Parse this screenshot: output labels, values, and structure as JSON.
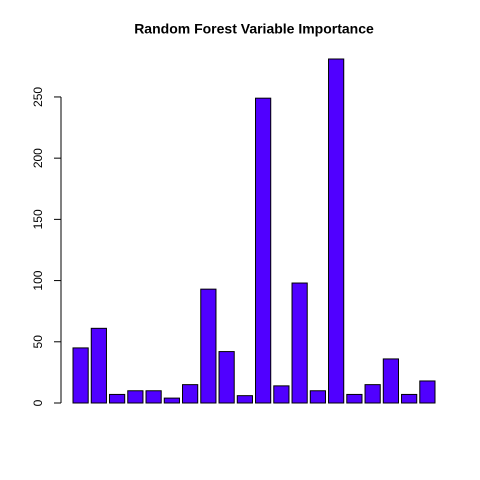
{
  "chart_data": {
    "type": "bar",
    "title": "Random Forest Variable Importance",
    "categories": [
      null,
      null,
      null,
      null,
      null,
      null,
      null,
      null,
      null,
      null,
      null,
      null,
      null,
      null,
      null,
      null,
      null,
      null,
      null,
      null
    ],
    "values": [
      45,
      61,
      7,
      10,
      10,
      4,
      15,
      93,
      42,
      6,
      249,
      14,
      98,
      10,
      281,
      7,
      15,
      36,
      7,
      18
    ],
    "color": "#5000ff",
    "ylim": [
      0,
      281
    ],
    "yticks": [
      0,
      50,
      100,
      150,
      200,
      250
    ],
    "grid": false
  }
}
